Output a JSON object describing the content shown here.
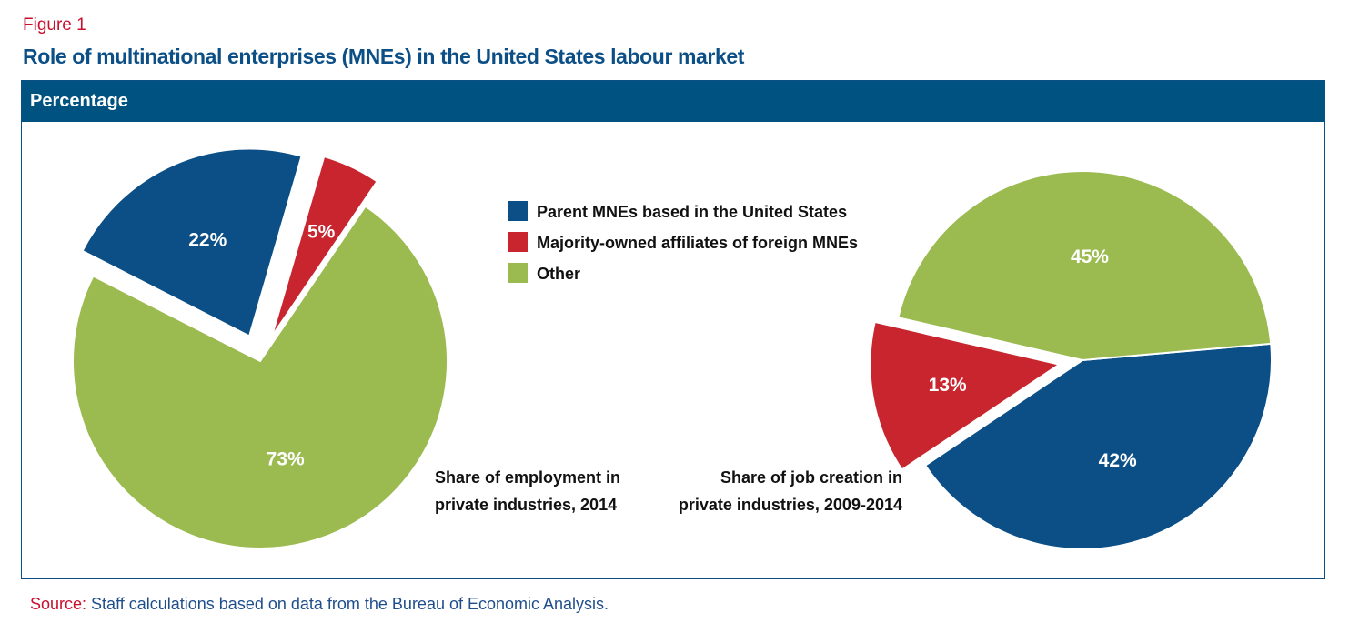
{
  "figure_label": "Figure 1",
  "title": "Role of multinational enterprises (MNEs) in the United States labour market",
  "panel_header": "Percentage",
  "source": {
    "prefix": "Source:",
    "text": " Staff calculations based on data from the Bureau of Economic Analysis."
  },
  "colors": {
    "header_bg": "#005281",
    "parent_mnes": "#0b4f86",
    "foreign_affiliates": "#c9252f",
    "other": "#9bbb50",
    "title": "#0b4f86",
    "figure_label": "#c8102e"
  },
  "chart_data": [
    {
      "type": "pie",
      "caption": [
        "Share of employment in",
        "private industries, 2014"
      ],
      "legend": "top-right",
      "slices": [
        {
          "name": "Parent MNEs based in the United States",
          "value": 22,
          "label": "22%",
          "color": "#0b4f86",
          "exploded": true
        },
        {
          "name": "Majority-owned affiliates of foreign MNEs",
          "value": 5,
          "label": "5%",
          "color": "#c9252f",
          "exploded": true
        },
        {
          "name": "Other",
          "value": 73,
          "label": "73%",
          "color": "#9bbb50",
          "exploded": false
        }
      ]
    },
    {
      "type": "pie",
      "caption": [
        "Share of job creation in",
        "private industries, 2009-2014"
      ],
      "legend": "top-right",
      "slices": [
        {
          "name": "Parent MNEs based in the United States",
          "value": 42,
          "label": "42%",
          "color": "#0b4f86",
          "exploded": false
        },
        {
          "name": "Majority-owned affiliates of foreign MNEs",
          "value": 13,
          "label": "13%",
          "color": "#c9252f",
          "exploded": true
        },
        {
          "name": "Other",
          "value": 45,
          "label": "45%",
          "color": "#9bbb50",
          "exploded": false
        }
      ]
    }
  ],
  "legend": [
    {
      "label": "Parent MNEs based in the United States",
      "color": "#0b4f86"
    },
    {
      "label": "Majority-owned affiliates of foreign MNEs",
      "color": "#c9252f"
    },
    {
      "label": "Other",
      "color": "#9bbb50"
    }
  ]
}
